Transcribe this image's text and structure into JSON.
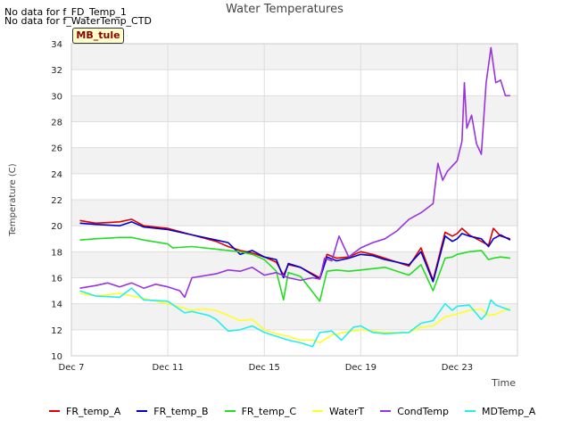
{
  "no_data_notes": [
    "No data for f_FD_Temp_1",
    "No data for f_WaterTemp_CTD"
  ],
  "badge_label": "MB_tule",
  "chart_data": {
    "type": "line",
    "title": "Water Temperatures",
    "xlabel": "Time",
    "ylabel": "Temperature (C)",
    "ylim": [
      10,
      34
    ],
    "xlim": [
      7,
      25.5
    ],
    "yticks": [
      10,
      12,
      14,
      16,
      18,
      20,
      22,
      24,
      26,
      28,
      30,
      32,
      34
    ],
    "xticks": [
      {
        "value": 7,
        "label": "Dec 7"
      },
      {
        "value": 11,
        "label": "Dec 11"
      },
      {
        "value": 15,
        "label": "Dec 15"
      },
      {
        "value": 19,
        "label": "Dec 19"
      },
      {
        "value": 23,
        "label": "Dec 23"
      }
    ],
    "grid": true,
    "alternating_bands": true,
    "legend_position": "bottom",
    "series": [
      {
        "name": "FR_temp_A",
        "color": "#dd0000",
        "x": [
          7.35,
          8,
          9,
          9.5,
          10,
          11,
          12,
          13,
          13.5,
          14,
          14.5,
          15,
          15.5,
          15.8,
          16,
          16.5,
          17.3,
          17.6,
          18,
          18.5,
          19,
          19.5,
          20,
          21,
          21.5,
          22,
          22.5,
          22.8,
          23,
          23.2,
          23.5,
          24,
          24.3,
          24.5,
          24.8,
          25.2
        ],
        "y": [
          20.4,
          20.2,
          20.3,
          20.5,
          20.0,
          19.8,
          19.3,
          18.8,
          18.4,
          18.1,
          17.9,
          17.6,
          17.2,
          16.2,
          17.0,
          16.8,
          16.0,
          17.8,
          17.5,
          17.6,
          18.0,
          17.8,
          17.5,
          16.9,
          18.3,
          15.8,
          19.5,
          19.2,
          19.4,
          19.8,
          19.3,
          18.8,
          18.5,
          19.8,
          19.2,
          19.0
        ]
      },
      {
        "name": "FR_temp_B",
        "color": "#0000cc",
        "x": [
          7.35,
          8,
          9,
          9.5,
          10,
          11,
          12,
          13,
          13.5,
          14,
          14.5,
          15,
          15.5,
          15.8,
          16,
          16.5,
          17.3,
          17.6,
          18,
          18.5,
          19,
          19.5,
          20,
          21,
          21.5,
          22,
          22.5,
          22.8,
          23,
          23.2,
          23.5,
          24,
          24.3,
          24.5,
          24.8,
          25.2
        ],
        "y": [
          20.2,
          20.1,
          20.0,
          20.3,
          19.9,
          19.7,
          19.3,
          18.9,
          18.7,
          17.8,
          18.1,
          17.6,
          17.4,
          16.0,
          17.1,
          16.8,
          15.9,
          17.6,
          17.3,
          17.5,
          17.8,
          17.7,
          17.4,
          17.0,
          18.0,
          15.7,
          19.2,
          18.8,
          19.0,
          19.4,
          19.2,
          19.0,
          18.4,
          19.0,
          19.3,
          18.9
        ]
      },
      {
        "name": "FR_temp_C",
        "color": "#22dd22",
        "x": [
          7.35,
          8,
          9,
          9.5,
          10,
          11,
          11.2,
          12,
          13,
          13.5,
          14,
          14.5,
          15,
          15.5,
          15.8,
          16,
          16.5,
          17.3,
          17.6,
          18,
          18.5,
          19,
          19.5,
          20,
          21,
          21.5,
          22,
          22.5,
          22.8,
          23,
          23.5,
          24,
          24.3,
          24.5,
          24.8,
          25.2
        ],
        "y": [
          18.9,
          19.0,
          19.1,
          19.1,
          18.9,
          18.6,
          18.3,
          18.4,
          18.2,
          18.1,
          18.0,
          17.8,
          17.4,
          16.5,
          14.3,
          16.4,
          16.1,
          14.2,
          16.5,
          16.6,
          16.5,
          16.6,
          16.7,
          16.8,
          16.2,
          17.0,
          15.0,
          17.5,
          17.6,
          17.8,
          18.0,
          18.1,
          17.4,
          17.5,
          17.6,
          17.5
        ]
      },
      {
        "name": "WaterT",
        "color": "#ffff22",
        "x": [
          7.35,
          8,
          9,
          9.5,
          10,
          11,
          12,
          12.5,
          13,
          13.5,
          14,
          14.5,
          15,
          15.5,
          16,
          16.5,
          17,
          17.3,
          17.8,
          18.3,
          19,
          19.5,
          20,
          21,
          21.5,
          22,
          22.5,
          23,
          23.5,
          24,
          24.3,
          24.6,
          25.2
        ],
        "y": [
          14.8,
          14.6,
          14.8,
          14.6,
          14.4,
          14.0,
          13.5,
          13.6,
          13.5,
          13.1,
          12.7,
          12.8,
          12.0,
          11.7,
          11.5,
          11.2,
          11.2,
          11.0,
          11.6,
          11.8,
          12.0,
          11.9,
          11.8,
          11.8,
          12.2,
          12.3,
          13.0,
          13.2,
          13.5,
          13.6,
          13.1,
          13.2,
          13.7
        ]
      },
      {
        "name": "CondTemp",
        "color": "#9933dd",
        "x": [
          7.35,
          8,
          8.5,
          9,
          9.5,
          10,
          10.5,
          11,
          11.5,
          11.7,
          12,
          13,
          13.5,
          14,
          14.5,
          15,
          15.5,
          16,
          16.5,
          17,
          17.3,
          17.5,
          17.8,
          18.1,
          18.5,
          19,
          19.5,
          20,
          20.5,
          21,
          21.5,
          22,
          22.2,
          22.4,
          22.6,
          23,
          23.2,
          23.3,
          23.4,
          23.6,
          23.8,
          24,
          24.2,
          24.4,
          24.6,
          24.8,
          25,
          25.2
        ],
        "y": [
          15.2,
          15.4,
          15.6,
          15.3,
          15.6,
          15.2,
          15.5,
          15.3,
          15.0,
          14.5,
          16.0,
          16.3,
          16.6,
          16.5,
          16.8,
          16.2,
          16.4,
          16.0,
          15.8,
          16.0,
          15.9,
          17.5,
          17.3,
          19.2,
          17.6,
          18.3,
          18.7,
          19.0,
          19.6,
          20.5,
          21.0,
          21.7,
          24.8,
          23.5,
          24.2,
          25.0,
          26.5,
          31.0,
          27.5,
          28.5,
          26.3,
          25.5,
          31.0,
          33.7,
          31.0,
          31.2,
          30.0,
          30.0
        ]
      },
      {
        "name": "MDTemp_A",
        "color": "#22eeee",
        "x": [
          7.35,
          8,
          9,
          9.5,
          10,
          11,
          11.7,
          12,
          12.7,
          13,
          13.5,
          14,
          14.5,
          15,
          15.5,
          16,
          16.5,
          17,
          17.3,
          17.8,
          18.2,
          18.7,
          19,
          19.5,
          20,
          21,
          21.5,
          22,
          22.5,
          22.8,
          23,
          23.5,
          24,
          24.2,
          24.4,
          24.6,
          25.2
        ],
        "y": [
          15.0,
          14.6,
          14.5,
          15.2,
          14.3,
          14.2,
          13.3,
          13.4,
          13.1,
          12.8,
          11.9,
          12.0,
          12.3,
          11.8,
          11.5,
          11.2,
          11.0,
          10.7,
          11.8,
          11.9,
          11.2,
          12.2,
          12.3,
          11.8,
          11.7,
          11.8,
          12.5,
          12.7,
          14.0,
          13.5,
          13.8,
          13.9,
          12.8,
          13.2,
          14.3,
          13.9,
          13.5
        ]
      }
    ]
  }
}
